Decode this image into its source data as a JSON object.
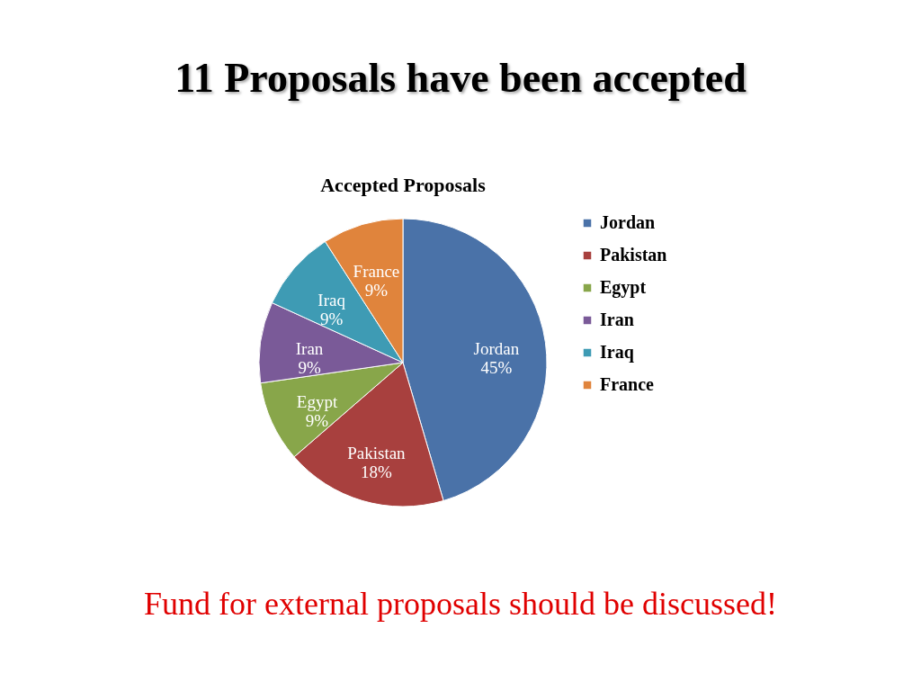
{
  "chart_data": {
    "type": "pie",
    "title": "11 Proposals have been accepted",
    "subtitle": "Accepted Proposals",
    "categories": [
      "Jordan",
      "Pakistan",
      "Egypt",
      "Iran",
      "Iraq",
      "France"
    ],
    "values": [
      45,
      18,
      9,
      9,
      9,
      9
    ],
    "value_labels": [
      "45%",
      "18%",
      "9%",
      "9%",
      "9%",
      "9%"
    ],
    "colors": [
      "#4a72a8",
      "#a8403e",
      "#88a64a",
      "#7a5a98",
      "#3e9bb4",
      "#e0843c"
    ],
    "legend": "right",
    "annotations": [
      "Fund for external proposals should be discussed!"
    ]
  }
}
